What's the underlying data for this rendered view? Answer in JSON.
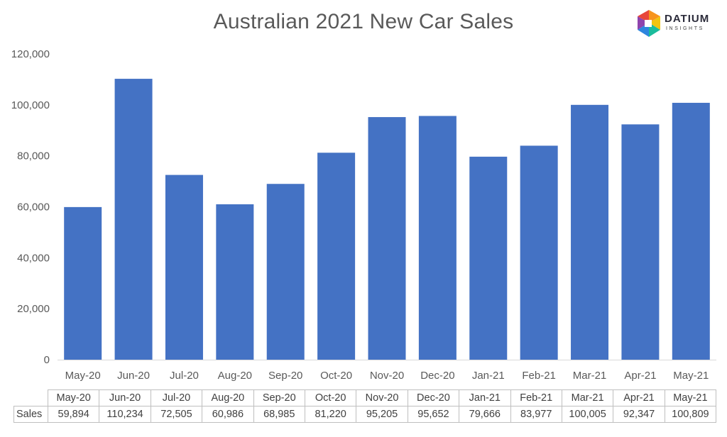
{
  "chart_data": {
    "type": "bar",
    "title": "Australian 2021 New Car Sales",
    "categories": [
      "May-20",
      "Jun-20",
      "Jul-20",
      "Aug-20",
      "Sep-20",
      "Oct-20",
      "Nov-20",
      "Dec-20",
      "Jan-21",
      "Feb-21",
      "Mar-21",
      "Apr-21",
      "May-21"
    ],
    "series": [
      {
        "name": "Sales",
        "values": [
          59894,
          110234,
          72505,
          60986,
          68985,
          81220,
          95205,
          95652,
          79666,
          83977,
          100005,
          92347,
          100809
        ]
      }
    ],
    "ylim": [
      0,
      120000
    ],
    "yticks": [
      0,
      20000,
      40000,
      60000,
      80000,
      100000,
      120000
    ],
    "ytick_labels": [
      "0",
      "20,000",
      "40,000",
      "60,000",
      "80,000",
      "100,000",
      "120,000"
    ],
    "value_labels": [
      "59,894",
      "110,234",
      "72,505",
      "60,986",
      "68,985",
      "81,220",
      "95,205",
      "95,652",
      "79,666",
      "83,977",
      "100,005",
      "92,347",
      "100,809"
    ],
    "bar_color": "#4472C4",
    "grid": false,
    "legend": "none",
    "data_table": true
  },
  "logo": {
    "brand": "DATIUM",
    "sub": "INSIGHTS"
  }
}
